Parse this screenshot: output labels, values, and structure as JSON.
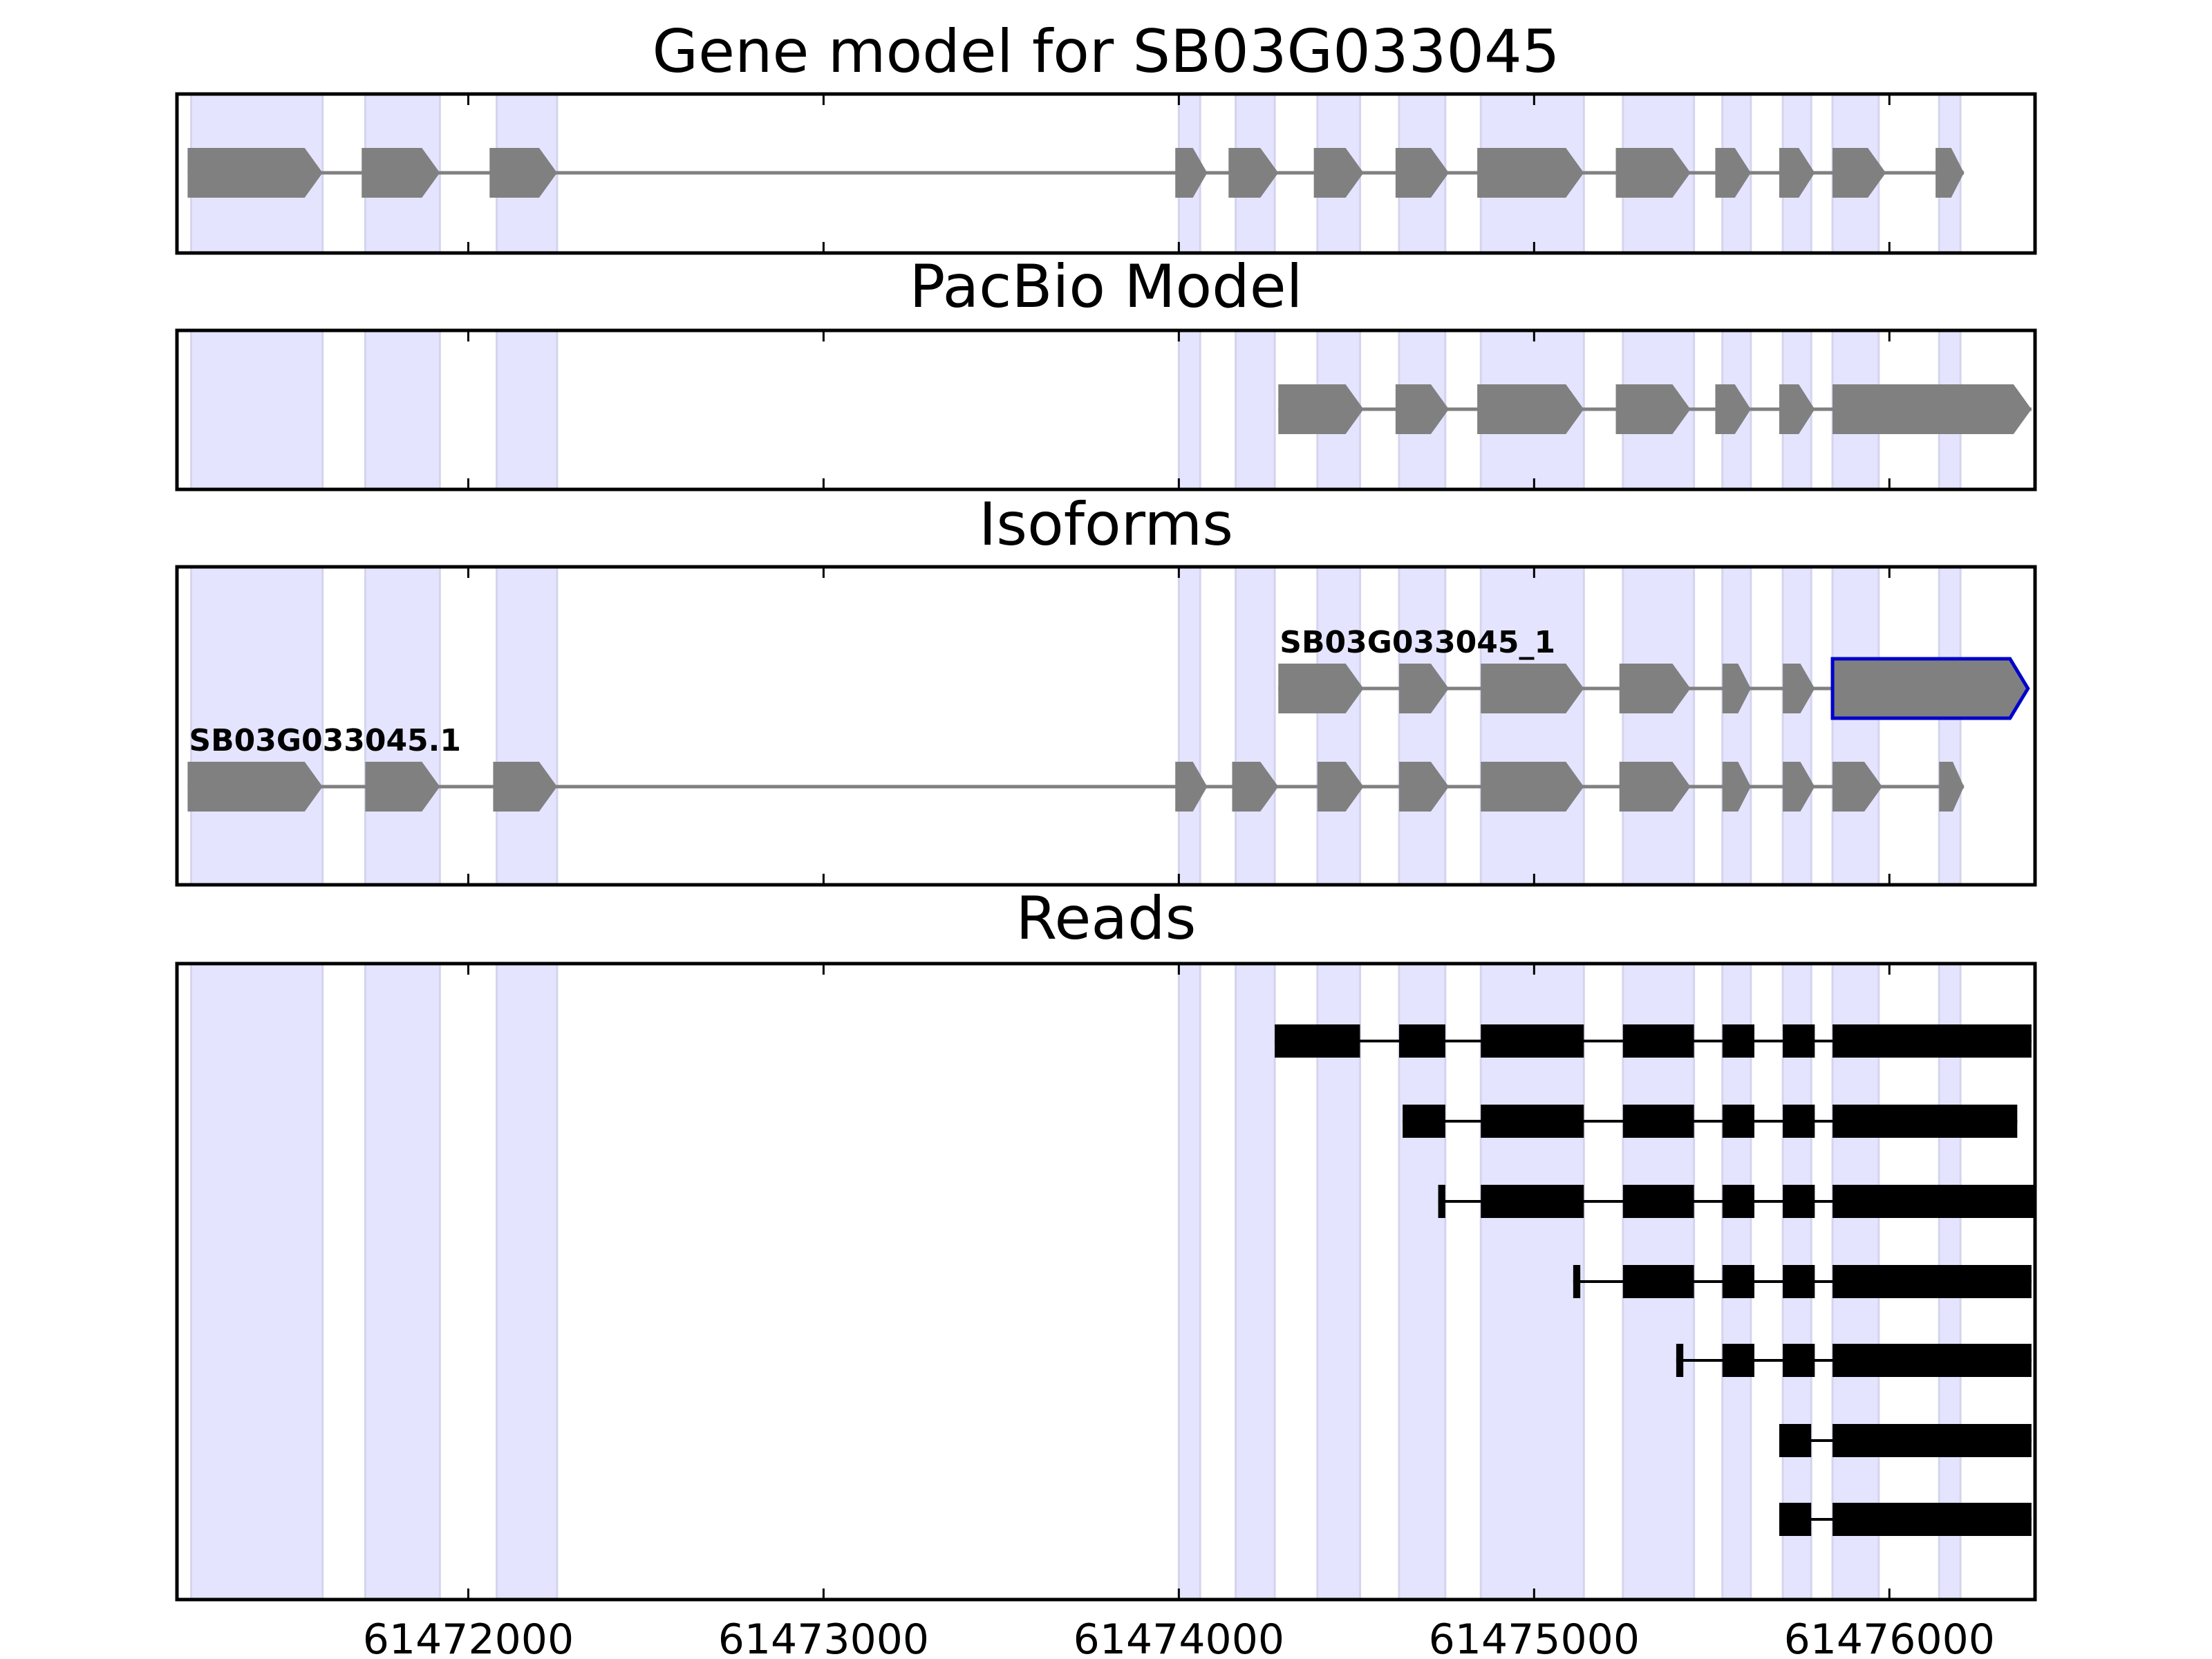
{
  "chart_data": {
    "type": "gene-structure",
    "x_range": [
      61471180,
      61476410
    ],
    "x_ticks": [
      61472000,
      61473000,
      61474000,
      61475000,
      61476000
    ],
    "x_tick_labels": [
      "61472000",
      "61473000",
      "61474000",
      "61475000",
      "61476000"
    ],
    "strand": "+",
    "highlight_color": "#e4e4ff",
    "exon_color": "#808080",
    "intron_color": "#808080",
    "read_color": "#000000",
    "selected_outline_color": "#0000cc",
    "highlight_regions": [
      [
        61471220,
        61471590
      ],
      [
        61471710,
        61471920
      ],
      [
        61472080,
        61472250
      ],
      [
        61474000,
        61474060
      ],
      [
        61474160,
        61474270
      ],
      [
        61474390,
        61474510
      ],
      [
        61474620,
        61474750
      ],
      [
        61474850,
        61475140
      ],
      [
        61475250,
        61475450
      ],
      [
        61475530,
        61475610
      ],
      [
        61475700,
        61475780
      ],
      [
        61475840,
        61475970
      ],
      [
        61476140,
        61476200
      ]
    ],
    "panels": [
      {
        "title": "Gene model for SB03G033045",
        "tracks": [
          {
            "exons": [
              [
                61471210,
                61471590
              ],
              [
                61471700,
                61471920
              ],
              [
                61472060,
                61472250
              ],
              [
                61473990,
                61474080
              ],
              [
                61474140,
                61474280
              ],
              [
                61474380,
                61474520
              ],
              [
                61474610,
                61474760
              ],
              [
                61474840,
                61475140
              ],
              [
                61475230,
                61475440
              ],
              [
                61475510,
                61475610
              ],
              [
                61475690,
                61475790
              ],
              [
                61475840,
                61475990
              ],
              [
                61476130,
                61476210
              ]
            ]
          }
        ]
      },
      {
        "title": "PacBio Model",
        "tracks": [
          {
            "exons": [
              [
                61474280,
                61474520
              ],
              [
                61474610,
                61474760
              ],
              [
                61474840,
                61475140
              ],
              [
                61475230,
                61475440
              ],
              [
                61475510,
                61475610
              ],
              [
                61475690,
                61475790
              ],
              [
                61475840,
                61476400
              ]
            ]
          }
        ]
      },
      {
        "title": "Isoforms",
        "tracks": [
          {
            "label": "SB03G033045_1",
            "selected_exon": 6,
            "exons": [
              [
                61474280,
                61474520
              ],
              [
                61474620,
                61474760
              ],
              [
                61474850,
                61475140
              ],
              [
                61475240,
                61475440
              ],
              [
                61475530,
                61475610
              ],
              [
                61475700,
                61475790
              ],
              [
                61475840,
                61476390
              ]
            ]
          },
          {
            "label": "SB03G033045.1",
            "exons": [
              [
                61471210,
                61471590
              ],
              [
                61471710,
                61471920
              ],
              [
                61472070,
                61472250
              ],
              [
                61473990,
                61474080
              ],
              [
                61474150,
                61474280
              ],
              [
                61474390,
                61474520
              ],
              [
                61474620,
                61474760
              ],
              [
                61474850,
                61475140
              ],
              [
                61475240,
                61475440
              ],
              [
                61475530,
                61475610
              ],
              [
                61475700,
                61475790
              ],
              [
                61475840,
                61475980
              ],
              [
                61476140,
                61476210
              ]
            ]
          }
        ]
      },
      {
        "title": "Reads",
        "tracks": [
          {
            "exons": [
              [
                61474270,
                61474510
              ],
              [
                61474620,
                61474750
              ],
              [
                61474850,
                61475140
              ],
              [
                61475250,
                61475450
              ],
              [
                61475530,
                61475620
              ],
              [
                61475700,
                61475790
              ],
              [
                61475840,
                61476400
              ]
            ]
          },
          {
            "exons": [
              [
                61474630,
                61474750
              ],
              [
                61474850,
                61475140
              ],
              [
                61475250,
                61475450
              ],
              [
                61475530,
                61475620
              ],
              [
                61475700,
                61475790
              ],
              [
                61475840,
                61476360
              ]
            ]
          },
          {
            "exons": [
              [
                61474730,
                61474750
              ],
              [
                61474850,
                61475140
              ],
              [
                61475250,
                61475450
              ],
              [
                61475530,
                61475620
              ],
              [
                61475700,
                61475790
              ],
              [
                61475840,
                61476420
              ]
            ]
          },
          {
            "exons": [
              [
                61475110,
                61475130
              ],
              [
                61475250,
                61475450
              ],
              [
                61475530,
                61475620
              ],
              [
                61475700,
                61475790
              ],
              [
                61475840,
                61476400
              ]
            ]
          },
          {
            "exons": [
              [
                61475400,
                61475420
              ],
              [
                61475530,
                61475620
              ],
              [
                61475700,
                61475790
              ],
              [
                61475840,
                61476400
              ]
            ]
          },
          {
            "exons": [
              [
                61475690,
                61475780
              ],
              [
                61475840,
                61476400
              ]
            ]
          },
          {
            "exons": [
              [
                61475690,
                61475780
              ],
              [
                61475840,
                61476400
              ]
            ]
          }
        ]
      }
    ]
  }
}
